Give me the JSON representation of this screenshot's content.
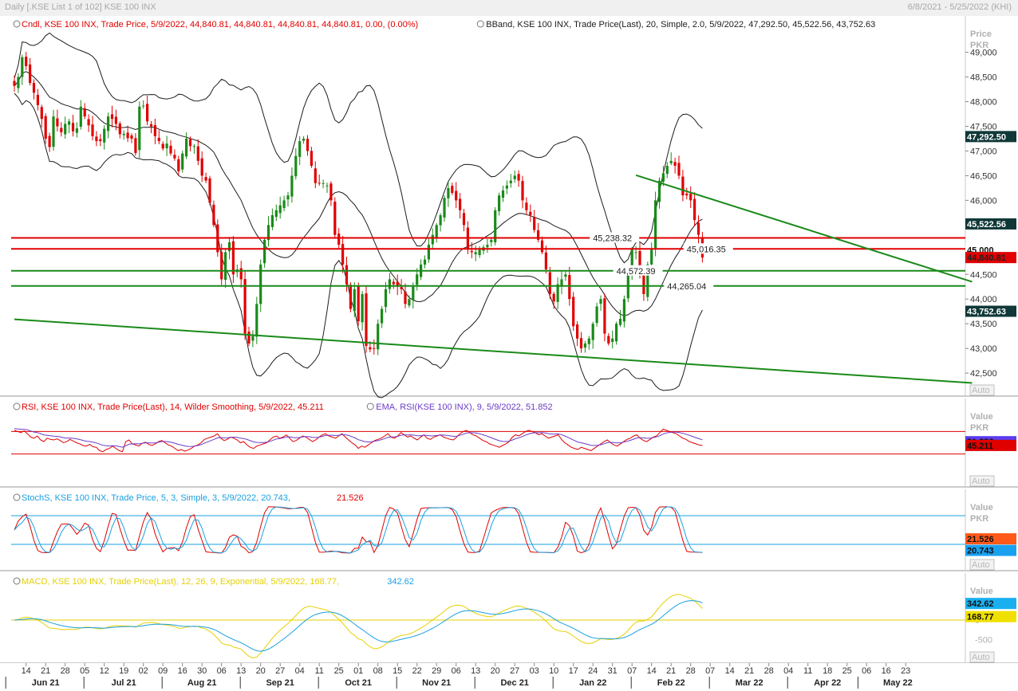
{
  "window": {
    "title": "Daily [.KSE List 1 of 102] KSE 100 INX",
    "date_range": "6/8/2021 - 5/25/2022 (KHI)"
  },
  "colors": {
    "up": "#1a8a1a",
    "down": "#e00000",
    "band": "#1c1c1c",
    "red_line": "#e00000",
    "green_line": "#1a8a1a",
    "rsi": "#e00000",
    "rsi_ema": "#6a3cc8",
    "stoch_k": "#e00000",
    "stoch_d": "#1aa0e0",
    "macd": "#e6d000",
    "macd_signal": "#1aa0e0"
  },
  "chart_data": [
    {
      "type": "candlestick",
      "panel": "price",
      "legend": [
        {
          "text": "Cndl, KSE 100 INX, Trade Price, 5/9/2022, 44,840.81, 44,840.81, 44,840.81, 44,840.81, 0.00, (0.00%)",
          "color": "#e00000"
        },
        {
          "text": "BBand, KSE 100 INX, Trade Price(Last), 20, Simple, 2.0, 5/9/2022, 47,292.50, 45,522.56, 43,752.63",
          "color": "#1c1c1c"
        }
      ],
      "axis_title": [
        "Price",
        "PKR"
      ],
      "y_ticks": [
        42500,
        43000,
        43500,
        44000,
        44500,
        45000,
        45500,
        46000,
        46500,
        47000,
        47500,
        48000,
        48500,
        49000
      ],
      "ylim": [
        42130,
        49640
      ],
      "closes": [
        48320,
        48500,
        48900,
        48720,
        48380,
        48180,
        47930,
        47650,
        47250,
        47080,
        47700,
        47500,
        47380,
        47550,
        47600,
        47400,
        47460,
        47900,
        47700,
        47520,
        47300,
        47200,
        47200,
        47450,
        47700,
        47650,
        47550,
        47340,
        47350,
        47260,
        47250,
        46960,
        47900,
        47920,
        47600,
        47500,
        47300,
        47200,
        47050,
        47150,
        46950,
        46850,
        46590,
        46950,
        47250,
        47100,
        47100,
        46800,
        46500,
        46400,
        45950,
        45500,
        44950,
        44400,
        44950,
        45150,
        44500,
        44600,
        44400,
        43300,
        43100,
        43250,
        43900,
        44700,
        45200,
        45500,
        45700,
        45800,
        45900,
        46000,
        46100,
        46500,
        46900,
        47200,
        47250,
        47000,
        46700,
        46350,
        46350,
        46350,
        46300,
        46000,
        45300,
        45100,
        44700,
        44300,
        43800,
        44200,
        43550,
        44100,
        43050,
        42980,
        43000,
        43500,
        43800,
        44200,
        44400,
        44300,
        44250,
        44200,
        43900,
        44000,
        44250,
        44500,
        44700,
        44800,
        45100,
        45300,
        45500,
        45700,
        46050,
        46250,
        46150,
        46000,
        45800,
        45500,
        45000,
        44950,
        44950,
        45000,
        45050,
        45100,
        45200,
        45800,
        46100,
        46200,
        46300,
        46400,
        46500,
        46400,
        46000,
        45800,
        45700,
        45400,
        45200,
        44950,
        44600,
        44100,
        43950,
        44300,
        44400,
        44500,
        44000,
        43450,
        43200,
        43000,
        43100,
        43200,
        43500,
        43850,
        44000,
        43300,
        43100,
        43200,
        43500,
        43600,
        44000,
        44500,
        45000,
        44950,
        44500,
        44100,
        44700,
        45000,
        46000,
        46400,
        46550,
        46700,
        46800,
        46700,
        46500,
        46100,
        46100,
        46000,
        45600,
        45300,
        44840.81
      ],
      "bollinger": {
        "period": 20,
        "std": 2.0,
        "upper_last": 47292.5,
        "middle_last": 45522.56,
        "lower_last": 43752.63
      },
      "horizontal_lines": [
        {
          "value": 45238.32,
          "label": "45,238.32",
          "color": "#e00000"
        },
        {
          "value": 45016.35,
          "label": "45,016.35",
          "color": "#e00000"
        },
        {
          "value": 44572.39,
          "label": "44,572.39",
          "color": "#1a8a1a"
        },
        {
          "value": 44265.04,
          "label": "44,265.04",
          "color": "#1a8a1a"
        }
      ],
      "trend_lines": [
        {
          "from": {
            "index": 0,
            "value": 43590
          },
          "to": {
            "index": 245,
            "value": 42300
          },
          "color": "#1a8a1a"
        },
        {
          "from": {
            "index": 159,
            "value": 46510
          },
          "to": {
            "index": 245,
            "value": 44350
          },
          "color": "#1a8a1a"
        }
      ],
      "value_tags": [
        {
          "value": 47292.5,
          "text": "47,292.50",
          "bg": "#103838",
          "fg": "#ffffff"
        },
        {
          "value": 45522.56,
          "text": "45,522.56",
          "bg": "#103838",
          "fg": "#ffffff"
        },
        {
          "value": 45000,
          "text": "45,000",
          "bg": "#ffffff",
          "fg": "#111111"
        },
        {
          "value": 44840.81,
          "text": "44,840.81",
          "bg": "#e00000",
          "fg": "#222222"
        },
        {
          "value": 43752.63,
          "text": "43,752.63",
          "bg": "#103838",
          "fg": "#ffffff"
        }
      ],
      "auto_label": "Auto"
    },
    {
      "type": "line",
      "panel": "rsi",
      "legend": [
        {
          "text": "RSI, KSE 100 INX, Trade Price(Last), 14, Wilder Smoothing, 5/9/2022, 45.211",
          "color": "#e00000"
        },
        {
          "text": "EMA, RSI(KSE 100 INX), 9, 5/9/2022, 51.852",
          "color": "#6a3cc8"
        }
      ],
      "axis_title": [
        "Value",
        "PKR"
      ],
      "ylim": [
        -20,
        120
      ],
      "guide_lines": [
        70,
        30
      ],
      "series": [
        {
          "name": "RSI",
          "last": 45.211,
          "last_text": "45.211",
          "values": [
            72,
            70,
            68,
            71,
            66,
            60,
            58,
            62,
            55,
            52,
            58,
            56,
            55,
            57,
            54,
            50,
            52,
            56,
            53,
            50,
            48,
            45,
            44,
            47,
            43,
            42,
            36,
            34,
            38,
            40,
            44,
            40,
            36,
            34,
            52,
            55,
            48,
            46,
            44,
            49,
            51,
            47,
            45,
            48,
            52,
            54,
            50,
            46,
            44,
            40,
            36,
            38,
            35,
            37,
            40,
            44,
            46,
            50,
            56,
            58,
            60,
            62,
            66,
            58,
            54,
            56,
            60,
            58,
            55,
            50,
            52,
            46,
            42,
            40,
            44,
            46,
            48,
            50,
            55,
            60,
            62,
            58,
            60,
            64,
            58,
            52,
            54,
            58,
            62,
            60,
            56,
            52,
            55,
            60,
            64,
            66,
            62,
            60,
            58,
            62,
            66,
            60,
            55,
            50,
            46,
            40,
            44,
            42,
            46,
            50,
            54,
            56,
            58,
            62,
            66,
            60,
            58,
            62,
            68,
            64,
            60,
            62,
            58,
            55,
            60,
            64,
            58,
            56,
            60,
            62,
            64,
            60,
            58,
            56,
            55,
            60,
            66,
            70,
            72,
            68,
            64,
            62,
            58,
            54,
            52,
            48,
            46,
            44,
            42,
            45,
            48,
            52,
            60,
            64,
            62,
            66,
            70,
            72,
            70,
            68,
            64,
            66,
            62,
            58,
            60,
            62,
            64,
            56,
            50,
            46,
            42,
            40,
            38,
            42,
            40,
            38,
            36,
            40,
            44,
            48,
            52,
            55,
            50,
            46,
            44,
            48,
            52,
            56,
            58,
            62,
            64,
            58,
            54,
            52,
            56,
            60,
            62,
            68,
            74,
            72,
            70,
            68,
            66,
            62,
            58,
            56,
            52,
            50,
            48,
            46,
            45.2
          ]
        },
        {
          "name": "EMA",
          "last": 51.852,
          "last_text": "51.852",
          "period": 9
        }
      ]
    },
    {
      "type": "line",
      "panel": "stochastic",
      "legend": [
        {
          "text": "StochS, KSE 100 INX, Trade Price, 5, 3, Simple, 3, 5/9/2022, 20.743,",
          "color": "#1aa0e0"
        },
        {
          "text": "21.526",
          "color": "#e00000"
        }
      ],
      "axis_title": [
        "Value",
        "PKR"
      ],
      "ylim": [
        -25,
        125
      ],
      "guide_lines": [
        80,
        20
      ],
      "series": [
        {
          "name": "%D",
          "last": 20.743,
          "last_text": "20.743"
        },
        {
          "name": "%K",
          "last": 21.526,
          "last_text": "21.526"
        }
      ]
    },
    {
      "type": "line",
      "panel": "macd",
      "legend": [
        {
          "text": "MACD, KSE 100 INX, Trade Price(Last), 12, 26, 9, Exponential, 5/9/2022, 168.77,",
          "color": "#e6d000"
        },
        {
          "text": "342.62",
          "color": "#1aa0e0"
        }
      ],
      "axis_title": [
        "Value",
        "PKR"
      ],
      "y_ticks": [
        0,
        -500
      ],
      "ylim": [
        -980,
        1080
      ],
      "series": [
        {
          "name": "MACD",
          "last": 168.77,
          "last_text": "168.77"
        },
        {
          "name": "Signal",
          "last": 342.62,
          "last_text": "342.62"
        }
      ]
    }
  ],
  "x_axis": {
    "day_ticks": [
      {
        "i": 3,
        "t": "14"
      },
      {
        "i": 8,
        "t": "21"
      },
      {
        "i": 13,
        "t": "28"
      },
      {
        "i": 18,
        "t": "05"
      },
      {
        "i": 23,
        "t": "12"
      },
      {
        "i": 28,
        "t": "19"
      },
      {
        "i": 33,
        "t": "02"
      },
      {
        "i": 38,
        "t": "09"
      },
      {
        "i": 43,
        "t": "16"
      },
      {
        "i": 48,
        "t": "30"
      },
      {
        "i": 53,
        "t": "06"
      },
      {
        "i": 58,
        "t": "13"
      },
      {
        "i": 63,
        "t": "20"
      },
      {
        "i": 68,
        "t": "27"
      },
      {
        "i": 73,
        "t": "04"
      },
      {
        "i": 78,
        "t": "11"
      },
      {
        "i": 83,
        "t": "25"
      },
      {
        "i": 88,
        "t": "01"
      },
      {
        "i": 93,
        "t": "08"
      },
      {
        "i": 98,
        "t": "15"
      },
      {
        "i": 103,
        "t": "22"
      },
      {
        "i": 108,
        "t": "29"
      },
      {
        "i": 113,
        "t": "06"
      },
      {
        "i": 118,
        "t": "13"
      },
      {
        "i": 123,
        "t": "20"
      },
      {
        "i": 128,
        "t": "27"
      },
      {
        "i": 133,
        "t": "03"
      },
      {
        "i": 138,
        "t": "10"
      },
      {
        "i": 143,
        "t": "17"
      },
      {
        "i": 148,
        "t": "24"
      },
      {
        "i": 153,
        "t": "31"
      },
      {
        "i": 158,
        "t": "07"
      },
      {
        "i": 163,
        "t": "14"
      },
      {
        "i": 168,
        "t": "21"
      },
      {
        "i": 173,
        "t": "28"
      },
      {
        "i": 178,
        "t": "07"
      },
      {
        "i": 183,
        "t": "14"
      },
      {
        "i": 188,
        "t": "21"
      },
      {
        "i": 193,
        "t": "28"
      },
      {
        "i": 198,
        "t": "04"
      },
      {
        "i": 203,
        "t": "11"
      },
      {
        "i": 208,
        "t": "18"
      },
      {
        "i": 213,
        "t": "25"
      },
      {
        "i": 218,
        "t": "06"
      },
      {
        "i": 223,
        "t": "16"
      },
      {
        "i": 228,
        "t": "23"
      }
    ],
    "month_ticks": [
      {
        "i": 8,
        "t": "Jun 21"
      },
      {
        "i": 28,
        "t": "Jul 21"
      },
      {
        "i": 48,
        "t": "Aug 21"
      },
      {
        "i": 68,
        "t": "Sep 21"
      },
      {
        "i": 88,
        "t": "Oct 21"
      },
      {
        "i": 108,
        "t": "Nov 21"
      },
      {
        "i": 128,
        "t": "Dec 21"
      },
      {
        "i": 148,
        "t": "Jan 22"
      },
      {
        "i": 168,
        "t": "Feb 22"
      },
      {
        "i": 188,
        "t": "Mar 22"
      },
      {
        "i": 208,
        "t": "Apr 22"
      },
      {
        "i": 226,
        "t": "May 22"
      }
    ]
  }
}
